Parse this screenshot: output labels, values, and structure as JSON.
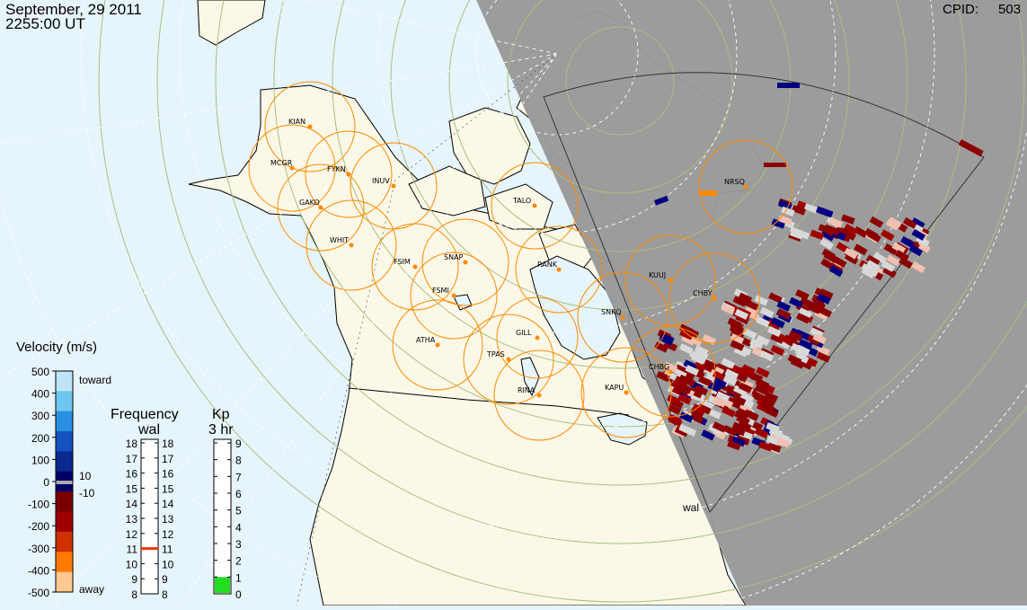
{
  "header": {
    "date": "September, 29 2011",
    "time": "2255:00 UT",
    "cpid_label": "CPID:",
    "cpid_value": "503"
  },
  "stations": [
    {
      "code": "KIAN"
    },
    {
      "code": "MCGR"
    },
    {
      "code": "FYKN"
    },
    {
      "code": "INUV"
    },
    {
      "code": "GAKO"
    },
    {
      "code": "WHIT"
    },
    {
      "code": "FSIM"
    },
    {
      "code": "SNAP"
    },
    {
      "code": "FSMI"
    },
    {
      "code": "RANK"
    },
    {
      "code": "TALO"
    },
    {
      "code": "NRSQ"
    },
    {
      "code": "KUUJ"
    },
    {
      "code": "CHBY"
    },
    {
      "code": "SNKQ"
    },
    {
      "code": "ATHA"
    },
    {
      "code": "GILL"
    },
    {
      "code": "TPAS"
    },
    {
      "code": "RINA"
    },
    {
      "code": "KAPU"
    },
    {
      "code": "CHBG"
    }
  ],
  "fov_radar_label": "wal",
  "velocity_legend": {
    "title": "Velocity (m/s)",
    "ticks": [
      "500",
      "400",
      "300",
      "200",
      "100",
      "0",
      "-100",
      "-200",
      "-300",
      "-400",
      "-500"
    ],
    "toward_label": "toward",
    "away_label": "away",
    "threshold_pos": "10",
    "threshold_neg": "-10",
    "colors": [
      "#bfe4f8",
      "#6cc6f0",
      "#2a8fe0",
      "#1450c0",
      "#0a2a90",
      "#000066",
      "#7a0000",
      "#a00000",
      "#d03000",
      "#ff7a00",
      "#ffc890"
    ]
  },
  "frequency_legend": {
    "title": "Frequency",
    "subtitle": "wal",
    "ticks": [
      "18",
      "17",
      "16",
      "15",
      "14",
      "13",
      "12",
      "11",
      "10",
      "9",
      "8"
    ],
    "current_value": 11,
    "marker_color": "#ff3300"
  },
  "kp_legend": {
    "title": "Kp",
    "subtitle": "3 hr",
    "ticks": [
      "9",
      "8",
      "7",
      "6",
      "5",
      "4",
      "3",
      "2",
      "1",
      "0"
    ],
    "value": 1,
    "fill_color": "#22dd22"
  },
  "colors": {
    "ocean": "#e6f4fc",
    "land": "#fbf8e8",
    "night": "#999999",
    "radar_circle": "#ff8a00",
    "grid": "#a8c080"
  }
}
